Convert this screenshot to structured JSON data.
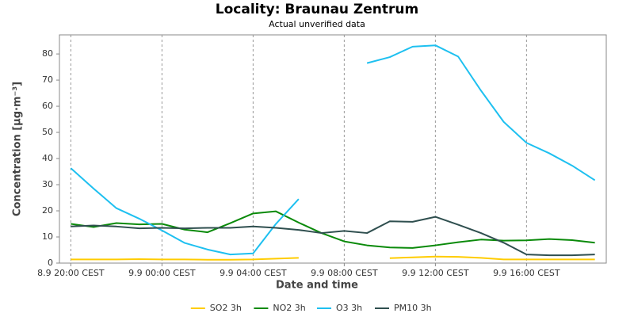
{
  "chart_data": {
    "type": "line",
    "title": "Locality: Braunau Zentrum",
    "subtitle": "Actual unverified data",
    "x_label": "Date and time",
    "y_label": "Concentration [µg·m⁻³]",
    "categories": [
      "8.9 20:00 CEST",
      null,
      null,
      null,
      "9.9 00:00 CEST",
      null,
      null,
      null,
      "9.9 04:00 CEST",
      null,
      null,
      null,
      "9.9 08:00 CEST",
      null,
      null,
      null,
      "9.9 12:00 CEST",
      null,
      null,
      null,
      "9.9 16:00 CEST",
      null,
      null,
      null
    ],
    "ylim": [
      0,
      87.3
    ],
    "yticks": [
      0,
      10,
      20,
      30,
      40,
      50,
      60,
      70,
      80
    ],
    "grid": "x",
    "legend": "bottom",
    "series": [
      {
        "name": "SO2 3h",
        "color": "#ffcc00",
        "values": [
          1.4,
          1.4,
          1.4,
          1.5,
          1.4,
          1.4,
          1.3,
          1.3,
          1.4,
          1.7,
          2.0,
          null,
          null,
          null,
          1.9,
          2.2,
          2.5,
          2.4,
          2.0,
          1.4,
          1.4,
          1.4,
          1.4,
          1.4
        ]
      },
      {
        "name": "NO2 3h",
        "color": "#0a8a0a",
        "values": [
          15.0,
          13.8,
          15.3,
          14.8,
          15.0,
          12.8,
          11.8,
          15.3,
          19.0,
          19.8,
          15.5,
          11.5,
          8.3,
          6.8,
          6.0,
          5.8,
          6.8,
          8.0,
          9.0,
          8.6,
          8.7,
          9.2,
          8.8,
          7.8
        ]
      },
      {
        "name": "O3 3h",
        "color": "#1ec0f0",
        "values": [
          36.3,
          28.5,
          21.0,
          17.0,
          12.5,
          7.7,
          5.2,
          3.3,
          3.7,
          15.0,
          24.5,
          null,
          null,
          76.5,
          78.8,
          82.8,
          83.3,
          79.0,
          66.0,
          54.0,
          46.0,
          42.0,
          37.3,
          31.7
        ]
      },
      {
        "name": "PM10 3h",
        "color": "#2f4f4f",
        "values": [
          14.0,
          14.4,
          14.0,
          13.3,
          13.5,
          13.3,
          13.5,
          13.5,
          14.0,
          13.5,
          12.7,
          11.5,
          12.3,
          11.5,
          16.0,
          15.8,
          17.7,
          14.7,
          11.5,
          7.8,
          3.3,
          3.0,
          3.0,
          3.3
        ]
      }
    ]
  }
}
